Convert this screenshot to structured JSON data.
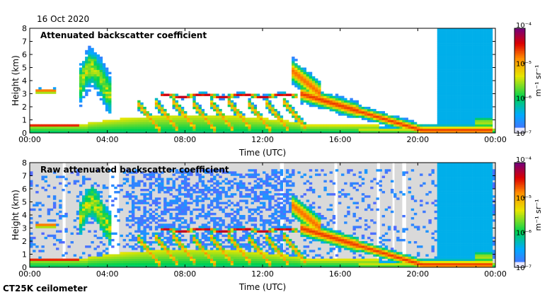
{
  "date_label": "16 Oct 2020",
  "instrument_label": "CT25K ceilometer",
  "colors": {
    "plot_bg": "#ffffff",
    "raw_bg": "#d9d9d9",
    "axis": "#000000"
  },
  "chart_data": [
    {
      "type": "heatmap",
      "title": "Attenuated backscatter coefficient",
      "xlabel": "Time (UTC)",
      "ylabel": "Height (km)",
      "x_ticks": [
        "00:00",
        "04:00",
        "08:00",
        "12:00",
        "16:00",
        "20:00",
        "00:00"
      ],
      "xlim_hours": [
        0,
        24
      ],
      "ylim": [
        0,
        8
      ],
      "y_ticks": [
        0,
        1,
        2,
        3,
        4,
        5,
        6,
        7,
        8
      ],
      "colorbar": {
        "scale": "log",
        "range": [
          "1e-7",
          "1e-4"
        ],
        "tick_labels": [
          "10⁻⁴",
          "10⁻⁵",
          "10⁻⁶",
          "10⁻⁷"
        ],
        "units": "m⁻¹ sr⁻¹"
      },
      "features": [
        {
          "name": "boundary layer",
          "hours": [
            0,
            2.5
          ],
          "height_km": 0.6
        },
        {
          "name": "cloud layer",
          "hours": [
            0.3,
            1.3
          ],
          "height_km": 3.2
        },
        {
          "name": "cloud layer",
          "hours": [
            6.8,
            13.8
          ],
          "height_km": 2.8
        },
        {
          "name": "descending layer",
          "hours": [
            14,
            21
          ],
          "height_km": [
            3.0,
            0.2
          ]
        }
      ]
    },
    {
      "type": "heatmap",
      "title": "Raw attenuated backscatter coefficient",
      "xlabel": "Time (UTC)",
      "ylabel": "Height (km)",
      "x_ticks": [
        "00:00",
        "04:00",
        "08:00",
        "12:00",
        "16:00",
        "20:00",
        "00:00"
      ],
      "xlim_hours": [
        0,
        24
      ],
      "ylim": [
        0,
        8
      ],
      "y_ticks": [
        0,
        1,
        2,
        3,
        4,
        5,
        6,
        7,
        8
      ],
      "colorbar": {
        "scale": "log",
        "range": [
          "1e-7",
          "1e-4"
        ],
        "tick_labels": [
          "10⁻⁴",
          "10⁻⁵",
          "10⁻⁶",
          "10⁻⁷"
        ],
        "units": "m⁻¹ sr⁻¹"
      }
    }
  ]
}
